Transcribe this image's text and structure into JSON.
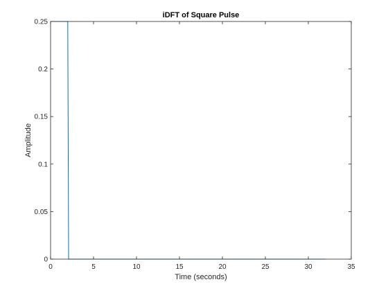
{
  "chart_data": {
    "type": "line",
    "title": "iDFT of Square Pulse",
    "xlabel": "Time (seconds)",
    "ylabel": "Amplitude",
    "xlim": [
      0,
      35
    ],
    "ylim": [
      0,
      0.25
    ],
    "grid": false,
    "box": true,
    "xticks": [
      0,
      5,
      10,
      15,
      20,
      25,
      30,
      35
    ],
    "xtick_labels": [
      "0",
      "5",
      "10",
      "15",
      "20",
      "25",
      "30",
      "35"
    ],
    "yticks": [
      0,
      0.05,
      0.1,
      0.15,
      0.2,
      0.25
    ],
    "ytick_labels": [
      "0",
      "0.05",
      "0.1",
      "0.15",
      "0.2",
      "0.25"
    ],
    "series": [
      {
        "color": "#0072bd",
        "x": [
          0,
          2,
          2.1,
          32
        ],
        "y": [
          0.25,
          0.25,
          0,
          0
        ]
      }
    ]
  }
}
